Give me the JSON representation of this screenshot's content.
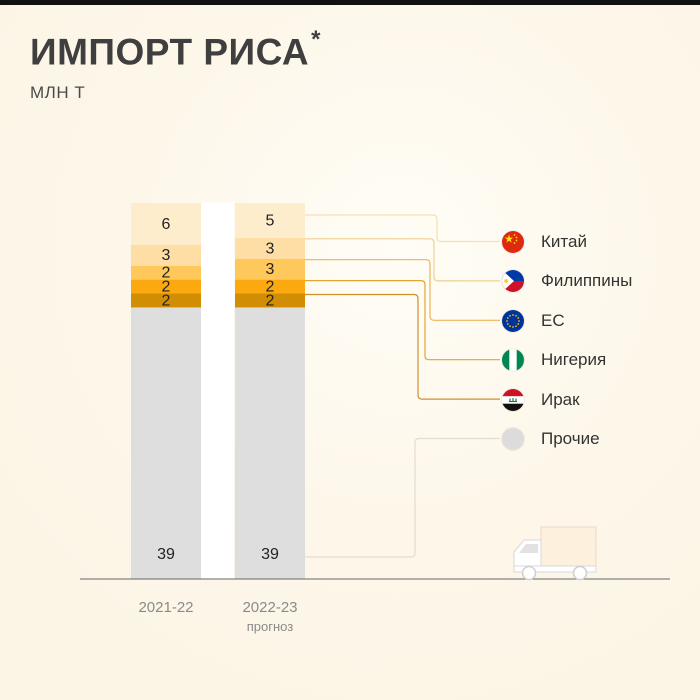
{
  "title": "ИМПОРТ РИСА",
  "title_mark": "*",
  "units": "МЛН Т",
  "chart_data": {
    "type": "bar",
    "stacked": true,
    "title": "ИМПОРТ РИСА*",
    "ylabel": "МЛН Т",
    "categories": [
      "2021-22",
      "2022-23"
    ],
    "category_notes": [
      "",
      "прогноз"
    ],
    "series": [
      {
        "name": "Прочие",
        "values": [
          39,
          39
        ],
        "color": "#dedede"
      },
      {
        "name": "Ирак",
        "values": [
          2,
          2
        ],
        "color": "#d18e04"
      },
      {
        "name": "Нигерия",
        "values": [
          2,
          2
        ],
        "color": "#fca80f"
      },
      {
        "name": "ЕС",
        "values": [
          2,
          3
        ],
        "color": "#fec85b"
      },
      {
        "name": "Филиппины",
        "values": [
          3,
          3
        ],
        "color": "#fedea5"
      },
      {
        "name": "Китай",
        "values": [
          6,
          5
        ],
        "color": "#feedcd"
      }
    ],
    "legend_order": [
      "Китай",
      "Филиппины",
      "ЕС",
      "Нигерия",
      "Ирак",
      "Прочие"
    ],
    "legend_position": "right"
  },
  "legend": [
    {
      "label": "Китай",
      "flag": "china-flag-icon"
    },
    {
      "label": "Филиппины",
      "flag": "philippines-flag-icon"
    },
    {
      "label": "ЕС",
      "flag": "eu-flag-icon"
    },
    {
      "label": "Нигерия",
      "flag": "nigeria-flag-icon"
    },
    {
      "label": "Ирак",
      "flag": "iraq-flag-icon"
    },
    {
      "label": "Прочие",
      "flag": "gray-dot-icon"
    }
  ],
  "decor": {
    "truck": "truck-icon"
  }
}
